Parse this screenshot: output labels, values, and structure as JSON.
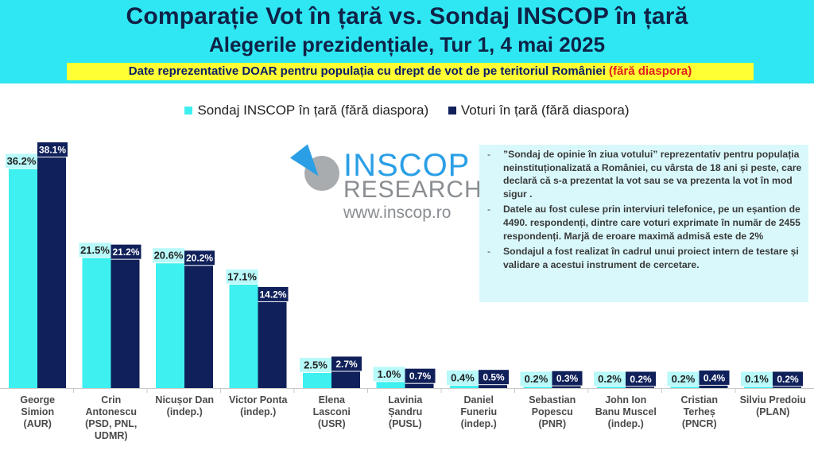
{
  "header": {
    "title": "Comparație Vot în țară vs. Sondaj INSCOP în țară",
    "subtitle": "Alegerile prezidențiale, Tur 1, 4 mai 2025",
    "note_main": "Date reprezentative DOAR pentru populația cu drept de vot de pe teritoriul României ",
    "note_highlight": "(fără diaspora)"
  },
  "logo": {
    "brand": "INSCOP",
    "research": "RESEARCH",
    "url": "www.inscop.ro"
  },
  "info": {
    "p1": "”Sondaj de opinie în ziua votului” reprezentativ pentru populația neinstituționalizată a României, cu vârsta de 18 ani și peste, care declară că s-a prezentat la vot sau se va prezenta la vot în mod sigur .",
    "p2": "Datele au fost culese prin interviuri telefonice, pe un eșantion de 4490. respondenți, dintre care voturi exprimate în număr de 2455 respondenți. Marjă de eroare maximă admisă este de 2%",
    "p3": "Sondajul a fost realizat în cadrul unui proiect intern de testare și validare a acestui instrument de cercetare."
  },
  "colors": {
    "header_bg": "#2fe7f2",
    "note_bg": "#ffff33",
    "poll": "#3ef0f0",
    "vote": "#10205a",
    "title_text": "#0f2247"
  },
  "chart_data": {
    "type": "bar",
    "categories": [
      [
        "George",
        "Simion",
        "(AUR)"
      ],
      [
        "Crin",
        "Antonescu",
        "(PSD, PNL,",
        "UDMR)"
      ],
      [
        "Nicușor Dan",
        "(indep.)"
      ],
      [
        "Victor Ponta",
        "(indep.)"
      ],
      [
        "Elena",
        "Lasconi",
        "(USR)"
      ],
      [
        "Lavinia",
        "Șandru",
        "(PUSL)"
      ],
      [
        "Daniel",
        "Funeriu",
        "(indep.)"
      ],
      [
        "Sebastian",
        "Popescu",
        "(PNR)"
      ],
      [
        "John Ion",
        "Banu Muscel",
        "(indep.)"
      ],
      [
        "Cristian",
        "Terheș",
        "(PNCR)"
      ],
      [
        "Silviu Predoiu",
        "(PLAN)"
      ]
    ],
    "series": [
      {
        "name": "Sondaj INSCOP în țară (fără diaspora)",
        "values": [
          36.2,
          21.5,
          20.6,
          17.1,
          2.5,
          1.0,
          0.4,
          0.2,
          0.2,
          0.2,
          0.1
        ],
        "labels": [
          "36.2%",
          "21.5%",
          "20.6%",
          "17.1%",
          "2.5%",
          "1.0%",
          "0.4%",
          "0.2%",
          "0.2%",
          "0.2%",
          "0.1%"
        ]
      },
      {
        "name": "Voturi în țară (fără diaspora)",
        "values": [
          38.1,
          21.2,
          20.2,
          14.2,
          2.7,
          0.7,
          0.5,
          0.3,
          0.2,
          0.4,
          0.2
        ],
        "labels": [
          "38.1%",
          "21.2%",
          "20.2%",
          "14.2%",
          "2.7%",
          "0.7%",
          "0.5%",
          "0.3%",
          "0.2%",
          "0.4%",
          "0.2%"
        ]
      }
    ],
    "ylim": [
      0,
      38.1
    ],
    "legend_position": "top"
  }
}
